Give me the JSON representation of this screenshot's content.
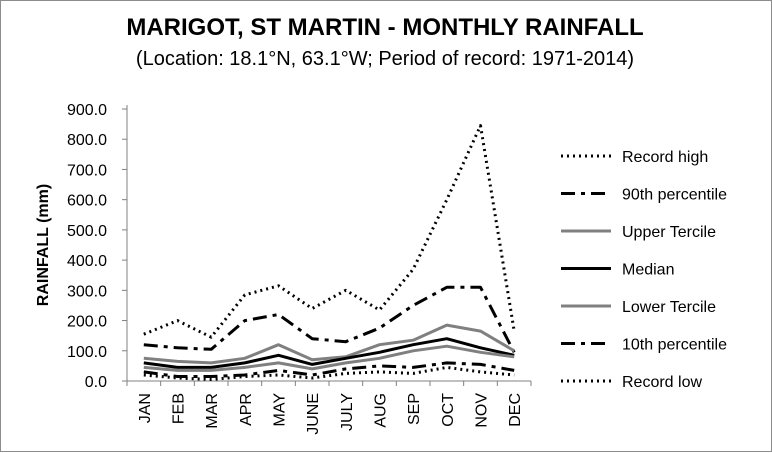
{
  "chart_data": {
    "type": "line",
    "title": "MARIGOT, ST MARTIN - MONTHLY RAINFALL",
    "subtitle": "(Location: 18.1°N, 63.1°W; Period of record: 1971-2014)",
    "xlabel": "",
    "ylabel": "RAINFALL (mm)",
    "ylim": [
      0,
      900
    ],
    "ytick_step": 100,
    "grid": false,
    "legend_position": "right",
    "categories": [
      "JAN",
      "FEB",
      "MAR",
      "APR",
      "MAY",
      "JUNE",
      "JULY",
      "AUG",
      "SEP",
      "OCT",
      "NOV",
      "DEC"
    ],
    "series": [
      {
        "name": "Record high",
        "style": "dotted",
        "color": "#000000",
        "values": [
          155,
          200,
          145,
          285,
          315,
          240,
          300,
          235,
          370,
          600,
          845,
          165
        ]
      },
      {
        "name": "90th percentile",
        "style": "dashdot",
        "color": "#000000",
        "values": [
          120,
          110,
          105,
          200,
          220,
          140,
          130,
          175,
          250,
          310,
          310,
          95
        ]
      },
      {
        "name": "Upper Tercile",
        "style": "solid",
        "color": "#808080",
        "values": [
          75,
          65,
          60,
          75,
          120,
          70,
          80,
          120,
          135,
          185,
          165,
          100
        ]
      },
      {
        "name": "Median",
        "style": "solid",
        "color": "#000000",
        "values": [
          60,
          45,
          45,
          60,
          85,
          55,
          75,
          95,
          120,
          140,
          110,
          85
        ]
      },
      {
        "name": "Lower Tercile",
        "style": "solid",
        "color": "#808080",
        "values": [
          45,
          35,
          35,
          45,
          60,
          40,
          60,
          75,
          100,
          115,
          95,
          80
        ]
      },
      {
        "name": "10th percentile",
        "style": "dashdot",
        "color": "#000000",
        "values": [
          30,
          15,
          15,
          20,
          35,
          20,
          40,
          50,
          45,
          60,
          55,
          35
        ]
      },
      {
        "name": "Record low",
        "style": "dotted",
        "color": "#000000",
        "values": [
          20,
          10,
          5,
          15,
          20,
          10,
          25,
          30,
          25,
          45,
          30,
          20
        ]
      }
    ]
  }
}
